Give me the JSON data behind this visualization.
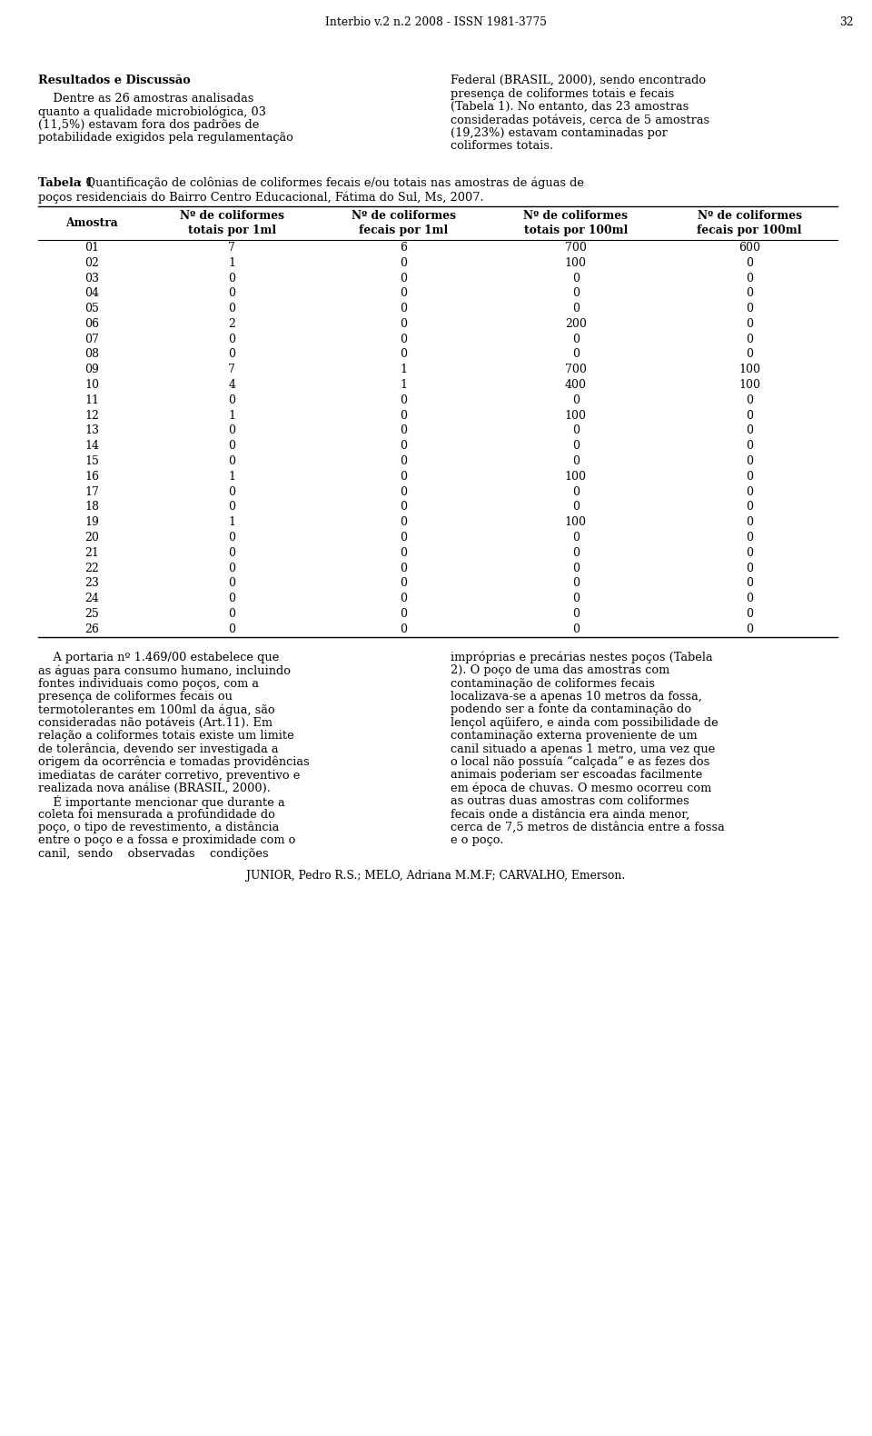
{
  "page_header": "Interbio v.2 n.2 2008 - ISSN 1981-3775",
  "page_number": "32",
  "bg_color": "#ffffff",
  "text_color": "#000000",
  "col_headers": [
    "Amostra",
    "Nº de coliformes\ntotais por 1ml",
    "Nº de coliformes\nfecais por 1ml",
    "Nº de coliformes\ntotais por 100ml",
    "Nº de coliformes\nfecais por 100ml"
  ],
  "table_data": [
    [
      "01",
      "7",
      "6",
      "700",
      "600"
    ],
    [
      "02",
      "1",
      "0",
      "100",
      "0"
    ],
    [
      "03",
      "0",
      "0",
      "0",
      "0"
    ],
    [
      "04",
      "0",
      "0",
      "0",
      "0"
    ],
    [
      "05",
      "0",
      "0",
      "0",
      "0"
    ],
    [
      "06",
      "2",
      "0",
      "200",
      "0"
    ],
    [
      "07",
      "0",
      "0",
      "0",
      "0"
    ],
    [
      "08",
      "0",
      "0",
      "0",
      "0"
    ],
    [
      "09",
      "7",
      "1",
      "700",
      "100"
    ],
    [
      "10",
      "4",
      "1",
      "400",
      "100"
    ],
    [
      "11",
      "0",
      "0",
      "0",
      "0"
    ],
    [
      "12",
      "1",
      "0",
      "100",
      "0"
    ],
    [
      "13",
      "0",
      "0",
      "0",
      "0"
    ],
    [
      "14",
      "0",
      "0",
      "0",
      "0"
    ],
    [
      "15",
      "0",
      "0",
      "0",
      "0"
    ],
    [
      "16",
      "1",
      "0",
      "100",
      "0"
    ],
    [
      "17",
      "0",
      "0",
      "0",
      "0"
    ],
    [
      "18",
      "0",
      "0",
      "0",
      "0"
    ],
    [
      "19",
      "1",
      "0",
      "100",
      "0"
    ],
    [
      "20",
      "0",
      "0",
      "0",
      "0"
    ],
    [
      "21",
      "0",
      "0",
      "0",
      "0"
    ],
    [
      "22",
      "0",
      "0",
      "0",
      "0"
    ],
    [
      "23",
      "0",
      "0",
      "0",
      "0"
    ],
    [
      "24",
      "0",
      "0",
      "0",
      "0"
    ],
    [
      "25",
      "0",
      "0",
      "0",
      "0"
    ],
    [
      "26",
      "0",
      "0",
      "0",
      "0"
    ]
  ],
  "footer_text": "JUNIOR, Pedro R.S.; MELO, Adriana M.M.F; CARVALHO, Emerson.",
  "left_top_para1": "    Dentre as 26 amostras analisadas",
  "left_top_para2": "quanto a qualidade microbiológica, 03",
  "left_top_para3": "(11,5%) estavam fora dos padrões de",
  "left_top_para4": "potabilidade exigidos pela regulamentação",
  "right_top_lines": [
    "Federal (BRASIL, 2000), sendo encontrado",
    "presença de coliformes totais e fecais",
    "(Tabela 1). No entanto, das 23 amostras",
    "consideradas potáveis, cerca de 5 amostras",
    "(19,23%) estavam contaminadas por",
    "coliformes totais."
  ],
  "caption_line1": "Tabela 1: Quantificação de colônias de coliformes fecais e/ou totais nas amostras de águas de",
  "caption_line2": "poços residenciais do Bairro Centro Educacional, Fátima do Sul, Ms, 2007.",
  "bottom_left_lines": [
    "    A portaria nº 1.469/00 estabelece que",
    "as águas para consumo humano, incluindo",
    "fontes individuais como poços, com a",
    "presença de coliformes fecais ou",
    "termotolerantes em 100ml da água, são",
    "consideradas não potáveis (Art.11). Em",
    "relação a coliformes totais existe um limite",
    "de tolerância, devendo ser investigada a",
    "origem da ocorrência e tomadas providências",
    "imediatas de caráter corretivo, preventivo e",
    "realizada nova análise (BRASIL, 2000).",
    "    É importante mencionar que durante a",
    "coleta foi mensurada a profundidade do",
    "poço, o tipo de revestimento, a distância",
    "entre o poço e a fossa e proximidade com o",
    "canil,  sendo    observadas    condições"
  ],
  "bottom_right_lines": [
    "impróprias e precárias nestes poços (Tabela",
    "2). O poço de uma das amostras com",
    "contaminação de coliformes fecais",
    "localizava-se a apenas 10 metros da fossa,",
    "podendo ser a fonte da contaminação do",
    "lençol aqüifero, e ainda com possibilidade de",
    "contaminação externa proveniente de um",
    "canil situado a apenas 1 metro, uma vez que",
    "o local não possuía “calçada” e as fezes dos",
    "animais poderiam ser escoadas facilmente",
    "em época de chuvas. O mesmo ocorreu com",
    "as outras duas amostras com coliformes",
    "fecais onde a distância era ainda menor,",
    "cerca de 7,5 metros de distância entre a fossa",
    "e o poço."
  ]
}
